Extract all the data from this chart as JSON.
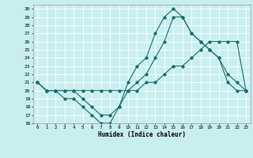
{
  "xlabel": "Humidex (Indice chaleur)",
  "xlim": [
    -0.5,
    23.5
  ],
  "ylim": [
    16,
    30.5
  ],
  "xticks": [
    0,
    1,
    2,
    3,
    4,
    5,
    6,
    7,
    8,
    9,
    10,
    11,
    12,
    13,
    14,
    15,
    16,
    17,
    18,
    19,
    20,
    21,
    22,
    23
  ],
  "yticks": [
    16,
    17,
    18,
    19,
    20,
    21,
    22,
    23,
    24,
    25,
    26,
    27,
    28,
    29,
    30
  ],
  "bg_color": "#c8eef0",
  "line_color": "#1a7070",
  "grid_color": "#ffffff",
  "line1": [
    21,
    20,
    20,
    20,
    20,
    19,
    18,
    17,
    17,
    18,
    21,
    23,
    24,
    27,
    29,
    30,
    29,
    27,
    26,
    25,
    24,
    21,
    20,
    20
  ],
  "line2": [
    21,
    20,
    20,
    19,
    19,
    18,
    17,
    16,
    16,
    18,
    20,
    21,
    22,
    24,
    26,
    29,
    29,
    27,
    26,
    25,
    24,
    22,
    21,
    20
  ],
  "line3": [
    21,
    20,
    20,
    20,
    20,
    20,
    20,
    20,
    20,
    20,
    20,
    20,
    21,
    21,
    22,
    23,
    23,
    24,
    25,
    26,
    26,
    26,
    26,
    20
  ]
}
